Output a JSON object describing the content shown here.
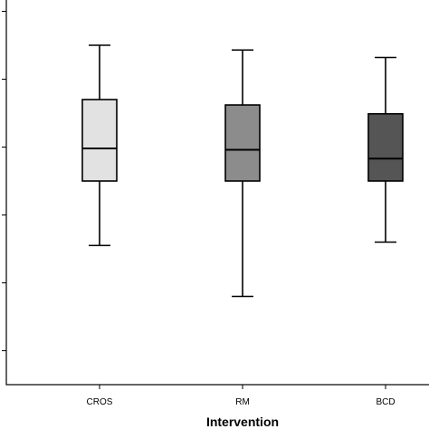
{
  "chart_data": {
    "type": "boxplot",
    "xlabel": "Intervention",
    "ylabel": "",
    "categories": [
      "CROS",
      "RM",
      "BCD"
    ],
    "ylim": [
      -0.5,
      5.3
    ],
    "yticks": [
      0,
      1,
      2,
      3,
      4,
      5
    ],
    "grid": false,
    "legend": "none",
    "boxes": [
      {
        "category": "CROS",
        "whisker_low": 1.55,
        "q1": 2.5,
        "median": 2.98,
        "q3": 3.7,
        "whisker_high": 4.5,
        "color": "#e2e2e2"
      },
      {
        "category": "RM",
        "whisker_low": 0.8,
        "q1": 2.5,
        "median": 2.96,
        "q3": 3.62,
        "whisker_high": 4.43,
        "color": "#8c8c8c"
      },
      {
        "category": "BCD",
        "whisker_low": 1.6,
        "q1": 2.5,
        "median": 2.83,
        "q3": 3.49,
        "whisker_high": 4.32,
        "color": "#555555"
      }
    ]
  }
}
